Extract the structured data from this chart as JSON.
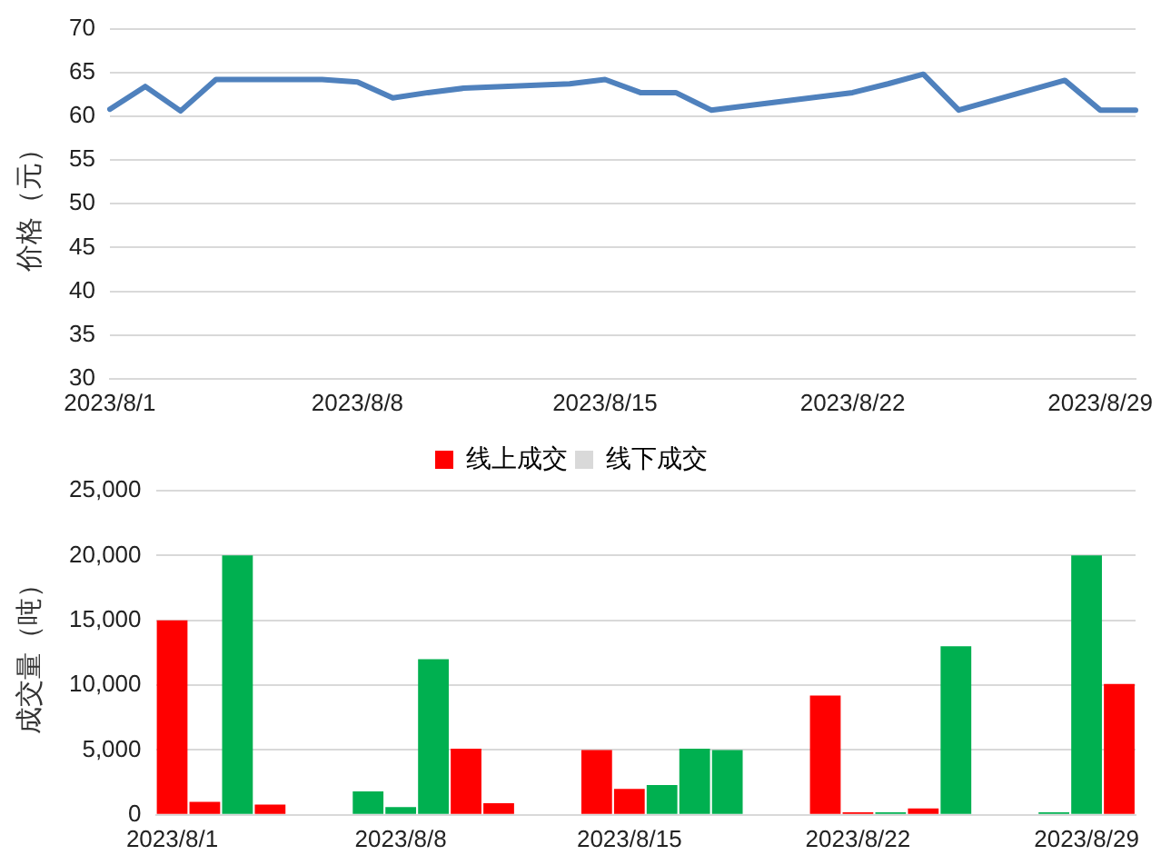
{
  "chart_data": [
    {
      "type": "line",
      "ylabel": "价格（元）",
      "categories": [
        "2023/8/1",
        null,
        null,
        null,
        null,
        null,
        null,
        "2023/8/8",
        null,
        null,
        null,
        null,
        null,
        null,
        "2023/8/15",
        null,
        null,
        null,
        null,
        null,
        null,
        "2023/8/22",
        null,
        null,
        null,
        null,
        null,
        null,
        "2023/8/29",
        null
      ],
      "values": [
        60.8,
        63.4,
        60.6,
        64.2,
        null,
        null,
        64.2,
        63.9,
        62.1,
        62.7,
        63.2,
        null,
        null,
        63.7,
        64.2,
        62.7,
        62.7,
        60.7,
        null,
        null,
        null,
        62.7,
        63.7,
        64.8,
        60.7,
        null,
        null,
        64.1,
        60.7,
        60.7
      ],
      "color": "#4f81bd",
      "ylim": [
        30,
        70
      ],
      "yticks": [
        30,
        35,
        40,
        45,
        50,
        55,
        60,
        65,
        70
      ],
      "grid": "y"
    },
    {
      "type": "bar",
      "ylabel": "成交量（吨）",
      "categories": [
        "2023/8/1",
        null,
        null,
        null,
        null,
        null,
        null,
        "2023/8/8",
        null,
        null,
        null,
        null,
        null,
        null,
        "2023/8/15",
        null,
        null,
        null,
        null,
        null,
        null,
        "2023/8/22",
        null,
        null,
        null,
        null,
        null,
        null,
        "2023/8/29",
        null
      ],
      "series": [
        {
          "name": "线上成交",
          "color": "#ff0000",
          "values": [
            15000,
            1000,
            20000,
            800,
            null,
            null,
            1800,
            600,
            12000,
            5100,
            900,
            null,
            null,
            5000,
            2000,
            2300,
            5100,
            5000,
            null,
            null,
            9200,
            200,
            200,
            500,
            13000,
            null,
            null,
            200,
            20000,
            10100
          ],
          "colors": [
            "#ff0000",
            "#ff0000",
            "#00b050",
            "#ff0000",
            null,
            null,
            "#00b050",
            "#00b050",
            "#00b050",
            "#ff0000",
            "#ff0000",
            null,
            null,
            "#ff0000",
            "#ff0000",
            "#00b050",
            "#00b050",
            "#00b050",
            null,
            null,
            "#ff0000",
            "#ff0000",
            "#00b050",
            "#ff0000",
            "#00b050",
            null,
            null,
            "#00b050",
            "#00b050",
            "#ff0000"
          ]
        },
        {
          "name": "线下成交",
          "color": "#d9d9d9",
          "values": [
            null,
            null,
            null,
            null,
            null,
            null,
            null,
            null,
            null,
            null,
            null,
            null,
            null,
            null,
            null,
            null,
            null,
            null,
            null,
            null,
            null,
            null,
            null,
            null,
            null,
            null,
            null,
            null,
            null,
            null
          ]
        }
      ],
      "ylim": [
        0,
        25000
      ],
      "yticks": [
        0,
        {
          "value": 5000,
          "label": "5,000"
        },
        {
          "value": 10000,
          "label": "10,000"
        },
        {
          "value": 15000,
          "label": "15,000"
        },
        {
          "value": 20000,
          "label": "20,000"
        },
        {
          "value": 25000,
          "label": "25,000"
        }
      ],
      "grid": "y",
      "legend": "top"
    }
  ]
}
